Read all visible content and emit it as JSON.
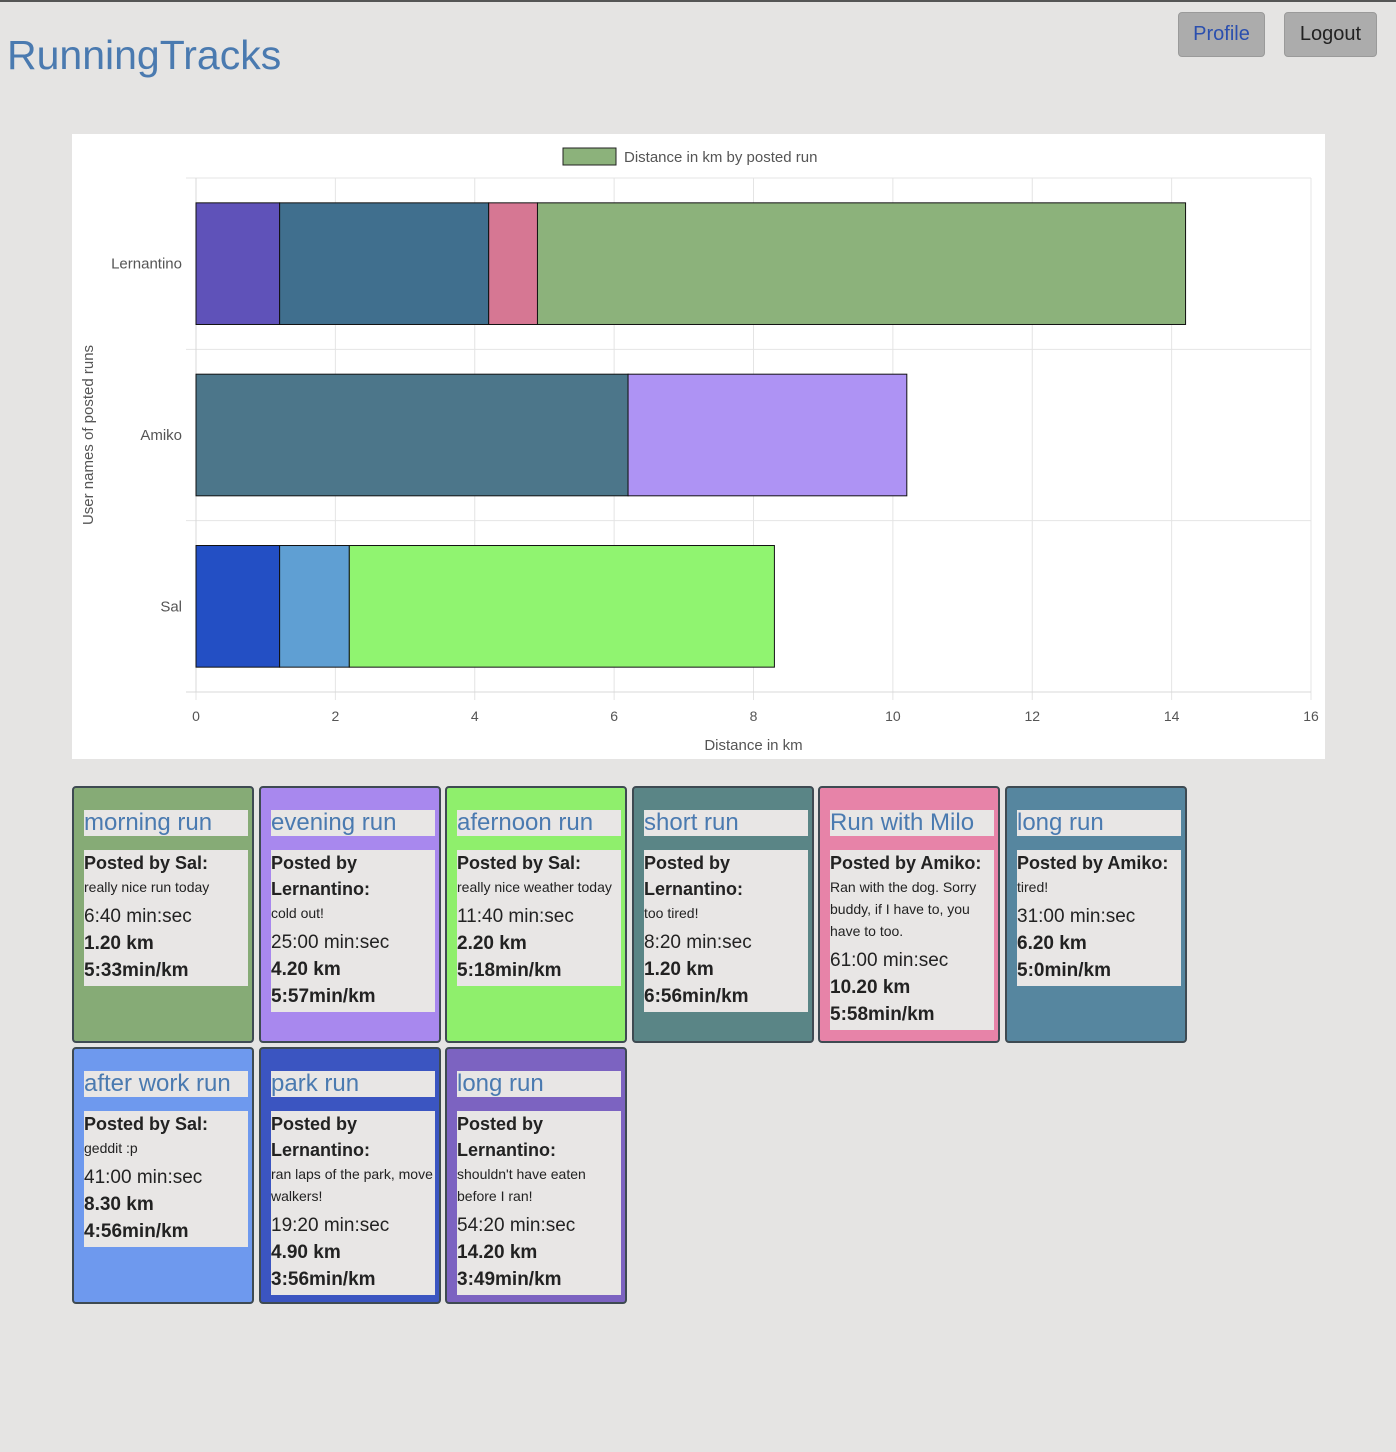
{
  "header": {
    "title": "RunningTracks",
    "profile_label": "Profile",
    "logout_label": "Logout"
  },
  "chart_data": {
    "type": "bar",
    "orientation": "horizontal",
    "stacked": true,
    "legend_label": "Distance in km by posted run",
    "legend_color": "#8cb27b",
    "legend_position": "top",
    "xlabel": "Distance in km",
    "ylabel": "User names of posted runs",
    "xlim": [
      0,
      16
    ],
    "xticks": [
      0,
      2,
      4,
      6,
      8,
      10,
      12,
      14,
      16
    ],
    "grid": true,
    "categories": [
      "Lernantino",
      "Amiko",
      "Sal"
    ],
    "stacks": [
      {
        "user": "Lernantino",
        "segments": [
          {
            "value": 1.2,
            "color": "#5f52b9"
          },
          {
            "value": 3.0,
            "color": "#406f8e"
          },
          {
            "value": 0.7,
            "color": "#d67793"
          },
          {
            "value": 9.3,
            "color": "#8cb27b"
          }
        ]
      },
      {
        "user": "Amiko",
        "segments": [
          {
            "value": 6.2,
            "color": "#4c768a"
          },
          {
            "value": 4.0,
            "color": "#ae93f4"
          }
        ]
      },
      {
        "user": "Sal",
        "segments": [
          {
            "value": 1.2,
            "color": "#234fc4"
          },
          {
            "value": 1.0,
            "color": "#5f9fd3"
          },
          {
            "value": 6.1,
            "color": "#90f470"
          }
        ]
      }
    ]
  },
  "runs": [
    {
      "title": "morning run",
      "author": "Posted by Sal:",
      "desc": "really nice run today",
      "time": "6:40 min:sec",
      "distance": "1.20 km",
      "pace": "5:33min/km",
      "color": "#86ab76"
    },
    {
      "title": "evening run",
      "author": "Posted by Lernantino:",
      "desc": "cold out!",
      "time": "25:00 min:sec",
      "distance": "4.20 km",
      "pace": "5:57min/km",
      "color": "#a888ee"
    },
    {
      "title": "afernoon run",
      "author": "Posted by Sal:",
      "desc": "really nice weather today",
      "time": "11:40 min:sec",
      "distance": "2.20 km",
      "pace": "5:18min/km",
      "color": "#8fef6c"
    },
    {
      "title": "short run",
      "author": "Posted by Lernantino:",
      "desc": "too tired!",
      "time": "8:20 min:sec",
      "distance": "1.20 km",
      "pace": "6:56min/km",
      "color": "#5a8586"
    },
    {
      "title": "Run with Milo",
      "author": "Posted by Amiko:",
      "desc": "Ran with the dog. Sorry buddy, if I have to, you have to too.",
      "time": "61:00 min:sec",
      "distance": "10.20 km",
      "pace": "5:58min/km",
      "color": "#e783a8"
    },
    {
      "title": "long run",
      "author": "Posted by Amiko:",
      "desc": "tired!",
      "time": "31:00 min:sec",
      "distance": "6.20 km",
      "pace": "5:0min/km",
      "color": "#56869f"
    },
    {
      "title": "after work run",
      "author": "Posted by Sal:",
      "desc": "geddit :p",
      "time": "41:00 min:sec",
      "distance": "8.30 km",
      "pace": "4:56min/km",
      "color": "#6e99ee"
    },
    {
      "title": "park run",
      "author": "Posted by Lernantino:",
      "desc": "ran laps of the park, move walkers!",
      "time": "19:20 min:sec",
      "distance": "4.90 km",
      "pace": "3:56min/km",
      "color": "#3b55c1"
    },
    {
      "title": "long run",
      "author": "Posted by Lernantino:",
      "desc": "shouldn't have eaten before I ran!",
      "time": "54:20 min:sec",
      "distance": "14.20 km",
      "pace": "3:49min/km",
      "color": "#7c63c1"
    }
  ]
}
